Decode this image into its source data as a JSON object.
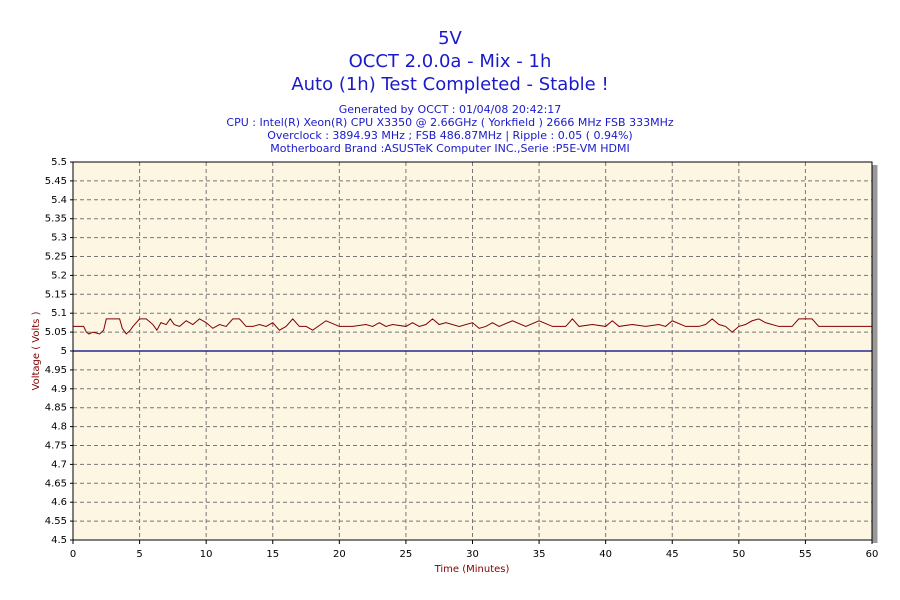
{
  "chart_data": {
    "type": "line",
    "titles": [
      "5V",
      "OCCT 2.0.0a - Mix - 1h",
      "Auto (1h) Test Completed - Stable !"
    ],
    "subtitles": [
      "Generated by OCCT : 01/04/08 20:42:17",
      "CPU : Intel(R) Xeon(R) CPU X3350 @ 2.66GHz ( Yorkfield ) 2666 MHz FSB 333MHz",
      "Overclock : 3894.93 MHz ; FSB 486.87MHz | Ripple : 0.05 ( 0.94%)",
      "Motherboard Brand :ASUSTeK Computer INC.,Serie :P5E-VM HDMI"
    ],
    "x_label": "Time (Minutes)",
    "y_label": "Voltage ( Volts )",
    "xlim": [
      0,
      60
    ],
    "xticks": [
      0,
      5,
      10,
      15,
      20,
      25,
      30,
      35,
      40,
      45,
      50,
      55,
      60
    ],
    "ylim": [
      4.5,
      5.5
    ],
    "yticks": [
      4.5,
      4.55,
      4.6,
      4.65,
      4.7,
      4.75,
      4.8,
      4.85,
      4.9,
      4.95,
      5,
      5.05,
      5.1,
      5.15,
      5.2,
      5.25,
      5.3,
      5.35,
      5.4,
      5.45,
      5.5
    ],
    "grid": true,
    "reference_line": {
      "value": 5,
      "color": "#000080"
    },
    "series": [
      {
        "color": "#800000",
        "x": [
          0,
          0.8,
          1,
          1.2,
          1.5,
          2,
          2.3,
          2.5,
          3,
          3.5,
          3.7,
          4,
          4.3,
          4.5,
          5,
          5.5,
          6,
          6.3,
          6.6,
          7,
          7.3,
          7.6,
          8,
          8.5,
          9,
          9.5,
          10,
          10.5,
          11,
          11.5,
          12,
          12.5,
          13,
          13.5,
          14,
          14.5,
          15,
          15.5,
          16,
          16.5,
          17,
          17.5,
          18,
          19,
          20,
          21,
          22,
          22.5,
          23,
          23.5,
          24,
          25,
          25.5,
          26,
          26.5,
          27,
          27.5,
          28,
          29,
          30,
          30.5,
          31,
          31.5,
          32,
          33,
          34,
          35,
          36,
          37,
          37.5,
          38,
          39,
          40,
          40.5,
          41,
          42,
          43,
          44,
          44.5,
          45,
          46,
          47,
          47.5,
          48,
          48.5,
          49,
          49.5,
          50,
          50.5,
          51,
          51.5,
          52,
          53,
          54,
          54.5,
          55,
          55.5,
          56,
          57,
          60
        ],
        "values": [
          5.065,
          5.065,
          5.05,
          5.045,
          5.05,
          5.045,
          5.055,
          5.085,
          5.085,
          5.085,
          5.06,
          5.045,
          5.055,
          5.065,
          5.085,
          5.085,
          5.07,
          5.055,
          5.075,
          5.07,
          5.085,
          5.07,
          5.065,
          5.08,
          5.07,
          5.085,
          5.075,
          5.06,
          5.07,
          5.065,
          5.085,
          5.085,
          5.065,
          5.065,
          5.07,
          5.065,
          5.075,
          5.055,
          5.065,
          5.085,
          5.065,
          5.065,
          5.055,
          5.08,
          5.065,
          5.065,
          5.07,
          5.065,
          5.075,
          5.065,
          5.07,
          5.065,
          5.075,
          5.065,
          5.07,
          5.085,
          5.07,
          5.075,
          5.065,
          5.075,
          5.06,
          5.065,
          5.075,
          5.065,
          5.08,
          5.065,
          5.08,
          5.065,
          5.065,
          5.085,
          5.065,
          5.07,
          5.065,
          5.08,
          5.065,
          5.07,
          5.065,
          5.07,
          5.065,
          5.08,
          5.065,
          5.065,
          5.07,
          5.085,
          5.07,
          5.065,
          5.05,
          5.065,
          5.07,
          5.08,
          5.085,
          5.075,
          5.065,
          5.065,
          5.085,
          5.085,
          5.085,
          5.065,
          5.065,
          5.065
        ]
      }
    ]
  }
}
